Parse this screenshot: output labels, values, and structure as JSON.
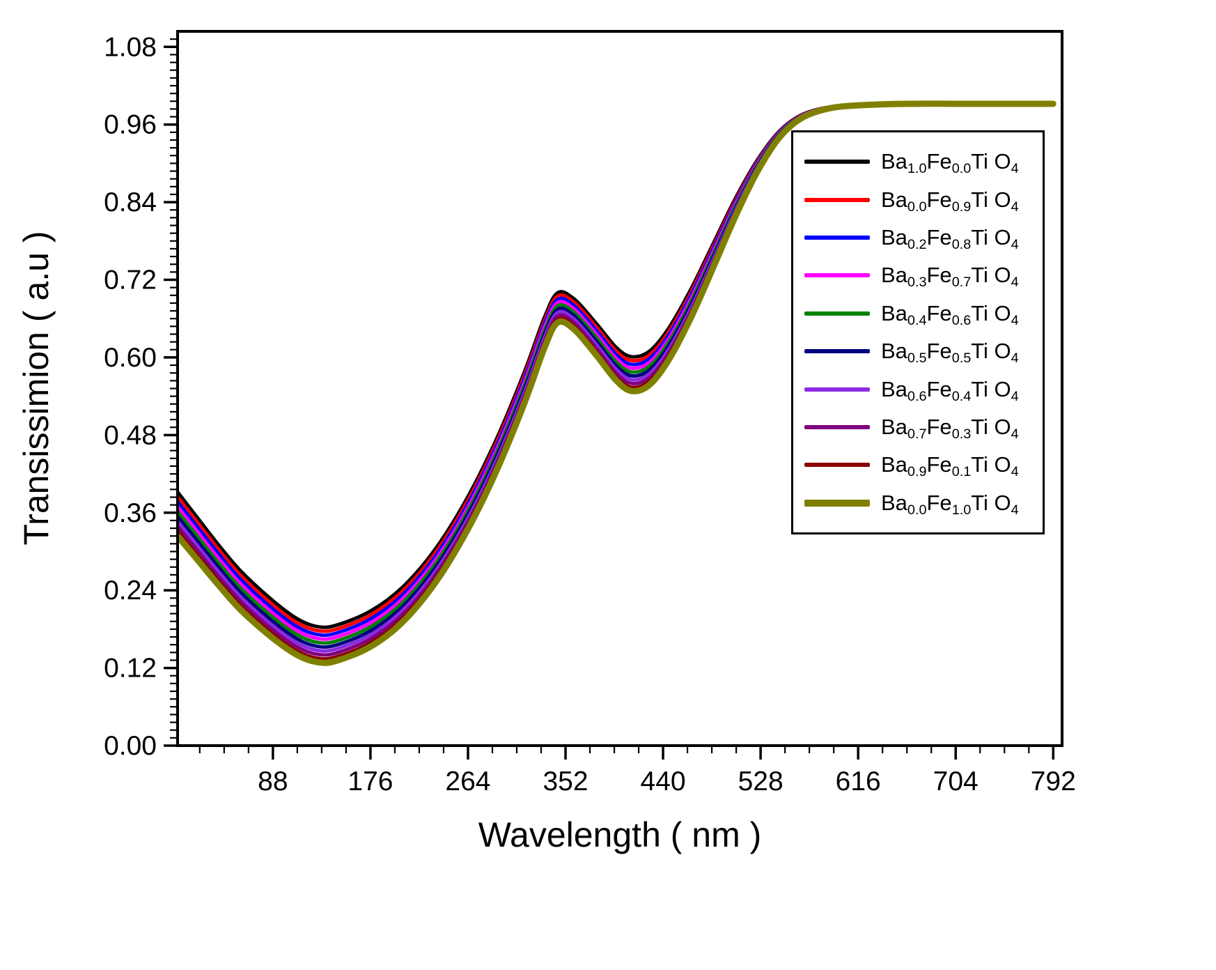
{
  "chart_data": {
    "type": "line",
    "title": "",
    "xlabel": "Wavelength ( nm )",
    "ylabel": "Transissimion ( a.u )",
    "xlim": [
      2,
      800
    ],
    "ylim": [
      0,
      1.104
    ],
    "xticks": [
      88,
      176,
      264,
      352,
      440,
      528,
      616,
      704,
      792
    ],
    "yticks": [
      0.0,
      0.12,
      0.24,
      0.36,
      0.48,
      0.6,
      0.72,
      0.84,
      0.96,
      1.08
    ],
    "x_minor_step": 22,
    "y_minor_step": 0.012,
    "grid": false,
    "tick_direction": "out",
    "legend_position": "inside upper right",
    "axis_color": "#000000",
    "background": "#FFFFFF",
    "x": [
      2,
      20,
      40,
      60,
      88,
      110,
      128,
      145,
      176,
      205,
      235,
      264,
      290,
      315,
      333,
      345,
      360,
      380,
      398,
      412,
      428,
      445,
      465,
      485,
      505,
      525,
      545,
      565,
      590,
      620,
      660,
      710,
      760,
      792
    ],
    "top_series_y": [
      0.392,
      0.352,
      0.308,
      0.268,
      0.224,
      0.196,
      0.184,
      0.186,
      0.208,
      0.245,
      0.305,
      0.385,
      0.475,
      0.578,
      0.662,
      0.7,
      0.69,
      0.652,
      0.615,
      0.601,
      0.61,
      0.645,
      0.705,
      0.775,
      0.845,
      0.905,
      0.95,
      0.975,
      0.987,
      0.991,
      0.992,
      0.992,
      0.992,
      0.992
    ],
    "series_spread": [
      0.068,
      0.065,
      0.062,
      0.06,
      0.058,
      0.056,
      0.055,
      0.055,
      0.055,
      0.054,
      0.052,
      0.05,
      0.049,
      0.048,
      0.047,
      0.046,
      0.047,
      0.049,
      0.051,
      0.053,
      0.052,
      0.049,
      0.044,
      0.037,
      0.028,
      0.018,
      0.01,
      0.005,
      0.002,
      0.001,
      0.0,
      0.0,
      0.0,
      0.0
    ],
    "series_y_rule": "y = top_series_y - offset_fraction * series_spread",
    "series": [
      {
        "label": "Ba_{1.0}Fe_{0.0}Ti O_{4}",
        "color": "#000000",
        "offset_fraction": 0.0,
        "line_width": 5
      },
      {
        "label": "Ba_{0.0}Fe_{0.9}Ti O_{4}",
        "color": "#FF0000",
        "offset_fraction": 0.111,
        "line_width": 5
      },
      {
        "label": "Ba_{0.2}Fe_{0.8}Ti O_{4}",
        "color": "#0000FF",
        "offset_fraction": 0.222,
        "line_width": 5
      },
      {
        "label": "Ba_{0.3}Fe_{0.7}Ti O_{4}",
        "color": "#FF00FF",
        "offset_fraction": 0.333,
        "line_width": 5
      },
      {
        "label": "Ba_{0.4}Fe_{0.6}Ti O_{4}",
        "color": "#008000",
        "offset_fraction": 0.444,
        "line_width": 5
      },
      {
        "label": "Ba_{0.5}Fe_{0.5}Ti O_{4}",
        "color": "#000080",
        "offset_fraction": 0.556,
        "line_width": 5
      },
      {
        "label": "Ba_{0.6}Fe_{0.4}Ti O_{4}",
        "color": "#8A2BE2",
        "offset_fraction": 0.667,
        "line_width": 5
      },
      {
        "label": "Ba_{0.7}Fe_{0.3}Ti O_{4}",
        "color": "#800080",
        "offset_fraction": 0.778,
        "line_width": 5
      },
      {
        "label": "Ba_{0.9}Fe_{0.1}Ti O_{4}",
        "color": "#8B0000",
        "offset_fraction": 0.889,
        "line_width": 5
      },
      {
        "label": "Ba_{0.0}Fe_{1.0}Ti O_{4}",
        "color": "#808000",
        "offset_fraction": 1.0,
        "line_width": 9
      }
    ]
  }
}
